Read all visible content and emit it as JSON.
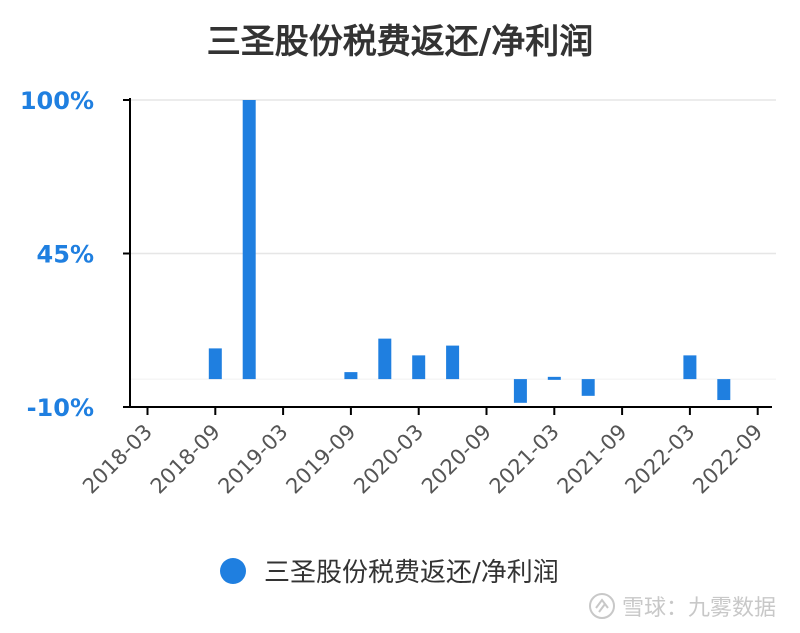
{
  "chart_data": {
    "type": "bar",
    "title": "三圣股份税费返还/净利润",
    "y_tick_labels": [
      "100%",
      "45%",
      "-10%"
    ],
    "y_ticks": [
      100,
      45,
      -10
    ],
    "ylim": [
      -10,
      100
    ],
    "x_tick_labels": [
      "2018-03",
      "2018-09",
      "2019-03",
      "2019-09",
      "2020-03",
      "2020-09",
      "2021-03",
      "2021-09",
      "2022-03",
      "2022-09"
    ],
    "categories": [
      "2018-03",
      "2018-06",
      "2018-09",
      "2018-12",
      "2019-03",
      "2019-06",
      "2019-09",
      "2019-12",
      "2020-03",
      "2020-06",
      "2020-09",
      "2020-12",
      "2021-03",
      "2021-06",
      "2021-09",
      "2021-12",
      "2022-03",
      "2022-06",
      "2022-09"
    ],
    "values": [
      0,
      0,
      11,
      100,
      0,
      0,
      2.5,
      14.5,
      8.5,
      12,
      0,
      -8.5,
      0.8,
      -6,
      0,
      0,
      8.5,
      -7.5,
      0
    ],
    "legend": "三圣股份税费返还/净利润",
    "legend_position": "bottom",
    "grid": true,
    "colors": {
      "bar": "#1f7fe0",
      "tick_label": "#1f7fe0",
      "axis": "#000000"
    }
  },
  "watermark": "雪球：九雾数据"
}
